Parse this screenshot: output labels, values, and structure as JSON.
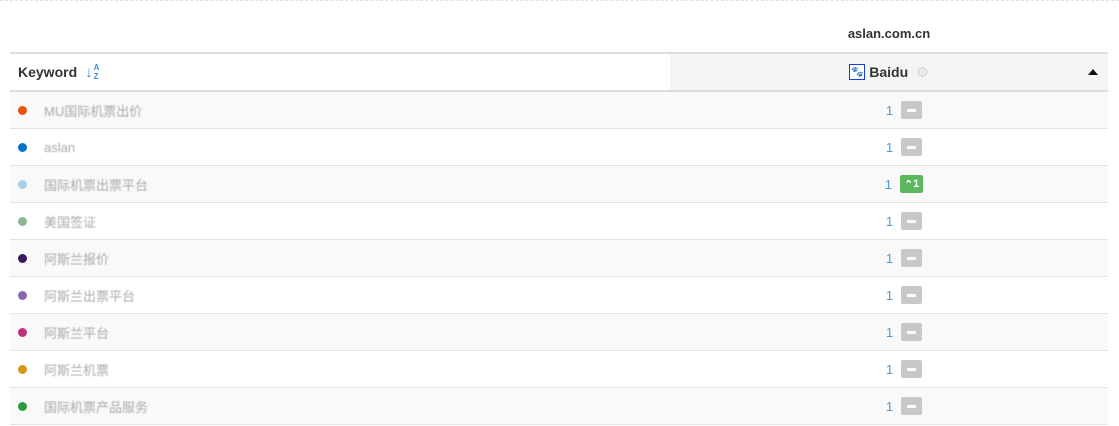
{
  "domain": "aslan.com.cn",
  "header": {
    "keyword_label": "Keyword",
    "engine": "Baidu",
    "sort_icon": "sort-alpha-icon",
    "engine_icon": "baidu-paw-icon"
  },
  "colors": {
    "rank": "#4a9ad6",
    "unchanged": "#c8c8c8",
    "up": "#5cb85c"
  },
  "rows": [
    {
      "keyword": "MU国际机票出价",
      "color": "#e8540f",
      "rank": "1",
      "change": "",
      "trend": "none"
    },
    {
      "keyword": "aslan",
      "color": "#0a72c4",
      "rank": "1",
      "change": "",
      "trend": "none"
    },
    {
      "keyword": "国际机票出票平台",
      "color": "#a8d0e8",
      "rank": "1",
      "change": "1",
      "trend": "up"
    },
    {
      "keyword": "美国签证",
      "color": "#8fb594",
      "rank": "1",
      "change": "",
      "trend": "none"
    },
    {
      "keyword": "阿斯兰报价",
      "color": "#3a1a5a",
      "rank": "1",
      "change": "",
      "trend": "none"
    },
    {
      "keyword": "阿斯兰出票平台",
      "color": "#8a68ad",
      "rank": "1",
      "change": "",
      "trend": "none"
    },
    {
      "keyword": "阿斯兰平台",
      "color": "#c0307a",
      "rank": "1",
      "change": "",
      "trend": "none"
    },
    {
      "keyword": "阿斯兰机票",
      "color": "#d4961a",
      "rank": "1",
      "change": "",
      "trend": "none"
    },
    {
      "keyword": "国际机票产品服务",
      "color": "#2e9a3e",
      "rank": "1",
      "change": "",
      "trend": "none"
    }
  ]
}
